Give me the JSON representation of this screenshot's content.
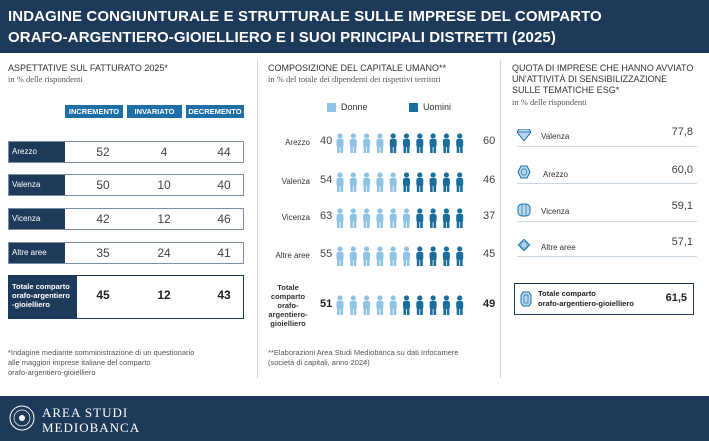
{
  "header": {
    "line1": "INDAGINE CONGIUNTURALE E STRUTTURALE SULLE IMPRESE DEL COMPARTO",
    "line2": "ORAFO-ARGENTIERO-GIOIELLIERO E I SUOI PRINCIPALI DISTRETTI (2025)"
  },
  "left": {
    "title": "ASPETTATIVE SUL FATTURATO 2025*",
    "subtitle": "in % delle rispondenti",
    "columns": [
      "INCREMENTO",
      "INVARIATO",
      "DECREMENTO"
    ],
    "rows": [
      {
        "label": "Arezzo",
        "values": [
          "52",
          "4",
          "44"
        ]
      },
      {
        "label": "Valenza",
        "values": [
          "50",
          "10",
          "40"
        ]
      },
      {
        "label": "Vicenza",
        "values": [
          "42",
          "12",
          "46"
        ]
      },
      {
        "label": "Altre aree",
        "values": [
          "35",
          "24",
          "41"
        ]
      }
    ],
    "total": {
      "label_lines": [
        "Totale comparto",
        "orafo-argentiero",
        "-gioielliero"
      ],
      "values": [
        "45",
        "12",
        "43"
      ]
    },
    "note": [
      "*Indagine mediante somministrazione di un questionario",
      "alle maggiori imprese italiane del comparto",
      "orafo-argentiero-gioielliero"
    ]
  },
  "middle": {
    "title": "COMPOSIZIONE DEL CAPITALE UMANO**",
    "subtitle": "in % del totale dei dipendenti dei rispettivi territori",
    "legend": {
      "donne": "Donne",
      "uomini": "Uomini"
    },
    "rows": [
      {
        "label": "Arezzo",
        "donne": "40",
        "uomini": "60"
      },
      {
        "label": "Valenza",
        "donne": "54",
        "uomini": "46"
      },
      {
        "label": "Vicenza",
        "donne": "63",
        "uomini": "37"
      },
      {
        "label": "Altre aree",
        "donne": "55",
        "uomini": "45"
      }
    ],
    "total": {
      "label_lines": [
        "Totale",
        "comparto",
        "orafo-",
        "argentiero-",
        "gioielliero"
      ],
      "donne": "51",
      "uomini": "49"
    },
    "note": [
      "**Elaborazioni Area Studi Mediobanca su dati Infocamere",
      "(società di capitali, anno 2024)"
    ]
  },
  "right": {
    "title_lines": [
      "QUOTA DI IMPRESE CHE HANNO AVVIATO",
      "UN'ATTIVITÀ DI SENSIBILIZZAZIONE",
      "SULLE TEMATICHE ESG*"
    ],
    "subtitle": "in % delle rispondenti",
    "rows": [
      {
        "label": "Valenza",
        "value": "77,8",
        "icon": "diamond-icon"
      },
      {
        "label": "Arezzo",
        "value": "60,0",
        "icon": "gem-hexagon-icon"
      },
      {
        "label": "Vicenza",
        "value": "59,1",
        "icon": "gem-round-icon"
      },
      {
        "label": "Altre aree",
        "value": "57,1",
        "icon": "gem-star-icon"
      }
    ],
    "total": {
      "label_lines": [
        "Totale comparto",
        "orafo-argentiero-gioielliero"
      ],
      "value": "61,5",
      "icon": "gem-emerald-icon"
    }
  },
  "footer": {
    "brand_line1": "AREA STUDI",
    "brand_line2": "MEDIOBANCA"
  },
  "colors": {
    "navy": "#1e3a5a",
    "accent_blue": "#1e6fa8",
    "donne": "#8fc3e6",
    "uomini": "#1a6e9e"
  },
  "chart_data": [
    {
      "type": "table",
      "title": "ASPETTATIVE SUL FATTURATO 2025*",
      "subtitle": "in % delle rispondenti",
      "columns": [
        "INCREMENTO",
        "INVARIATO",
        "DECREMENTO"
      ],
      "rows": [
        "Arezzo",
        "Valenza",
        "Vicenza",
        "Altre aree",
        "Totale comparto orafo-argentiero-gioielliero"
      ],
      "values": [
        [
          52,
          4,
          44
        ],
        [
          50,
          10,
          40
        ],
        [
          42,
          12,
          46
        ],
        [
          35,
          24,
          41
        ],
        [
          45,
          12,
          43
        ]
      ]
    },
    {
      "type": "bar",
      "title": "COMPOSIZIONE DEL CAPITALE UMANO**",
      "subtitle": "in % del totale dei dipendenti dei rispettivi territori",
      "categories": [
        "Arezzo",
        "Valenza",
        "Vicenza",
        "Altre aree",
        "Totale comparto orafo-argentiero-gioielliero"
      ],
      "series": [
        {
          "name": "Donne",
          "values": [
            40,
            54,
            63,
            55,
            51
          ]
        },
        {
          "name": "Uomini",
          "values": [
            60,
            46,
            37,
            45,
            49
          ]
        }
      ]
    },
    {
      "type": "bar",
      "title": "QUOTA DI IMPRESE CHE HANNO AVVIATO UN'ATTIVITÀ DI SENSIBILIZZAZIONE SULLE TEMATICHE ESG*",
      "subtitle": "in % delle rispondenti",
      "categories": [
        "Valenza",
        "Arezzo",
        "Vicenza",
        "Altre aree",
        "Totale comparto orafo-argentiero-gioielliero"
      ],
      "values": [
        77.8,
        60.0,
        59.1,
        57.1,
        61.5
      ]
    }
  ]
}
